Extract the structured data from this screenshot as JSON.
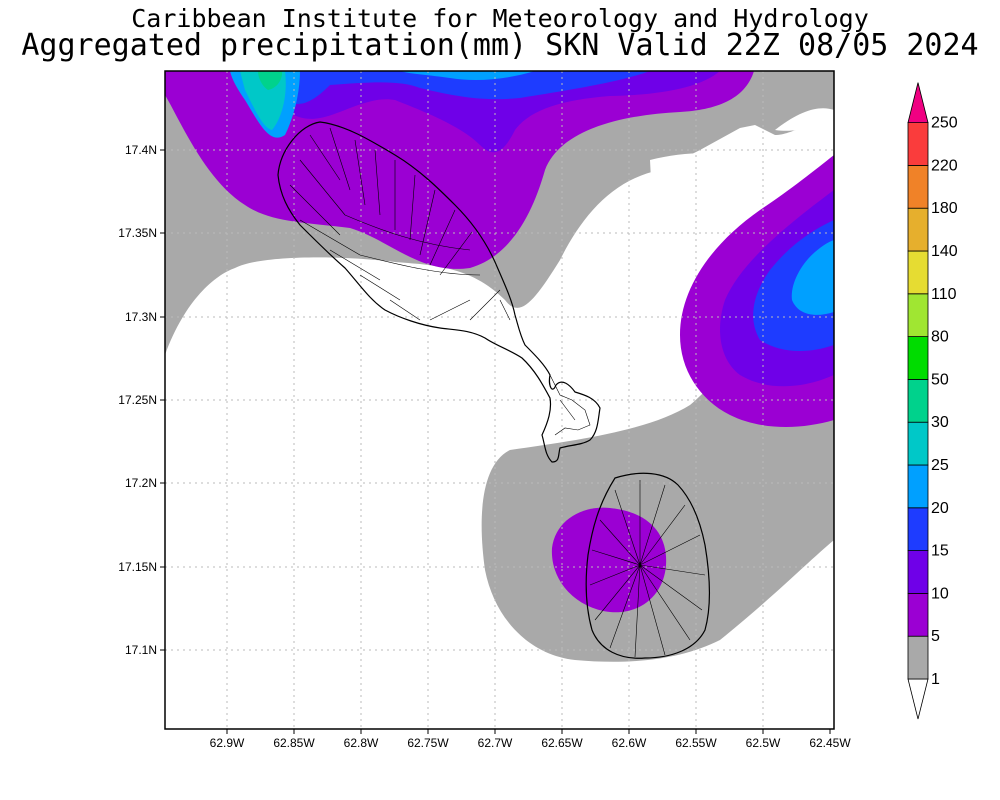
{
  "header": {
    "line1": "Caribbean Institute for Meteorology and Hydrology",
    "line2": "Aggregated precipitation(mm) SKN Valid 22Z 08/05 2024"
  },
  "map": {
    "x_ticks": [
      "62.9W",
      "62.85W",
      "62.8W",
      "62.75W",
      "62.7W",
      "62.65W",
      "62.6W",
      "62.55W",
      "62.5W",
      "62.45W"
    ],
    "y_ticks": [
      "17.4N",
      "17.35N",
      "17.3N",
      "17.25N",
      "17.2N",
      "17.15N",
      "17.1N"
    ],
    "colors": {
      "gray": "#a9a9a9",
      "purple": "#9b00d3",
      "violet": "#6f00e8",
      "blue": "#1e3cff",
      "lightblue": "#00a0ff",
      "cyan": "#00c8c8"
    }
  },
  "colorbar": {
    "levels": [
      {
        "label": "1",
        "color": "#ffffff"
      },
      {
        "label": "5",
        "color": "#a9a9a9"
      },
      {
        "label": "10",
        "color": "#9b00d3"
      },
      {
        "label": "15",
        "color": "#6f00e8"
      },
      {
        "label": "20",
        "color": "#1e3cff"
      },
      {
        "label": "25",
        "color": "#00a0ff"
      },
      {
        "label": "30",
        "color": "#00c8c8"
      },
      {
        "label": "50",
        "color": "#00d28c"
      },
      {
        "label": "80",
        "color": "#00dc00"
      },
      {
        "label": "110",
        "color": "#a0e632"
      },
      {
        "label": "140",
        "color": "#e6dc32"
      },
      {
        "label": "180",
        "color": "#e6af2d"
      },
      {
        "label": "220",
        "color": "#f08228"
      },
      {
        "label": "250",
        "color": "#fa3c3c"
      }
    ],
    "top_color": "#f00082"
  }
}
